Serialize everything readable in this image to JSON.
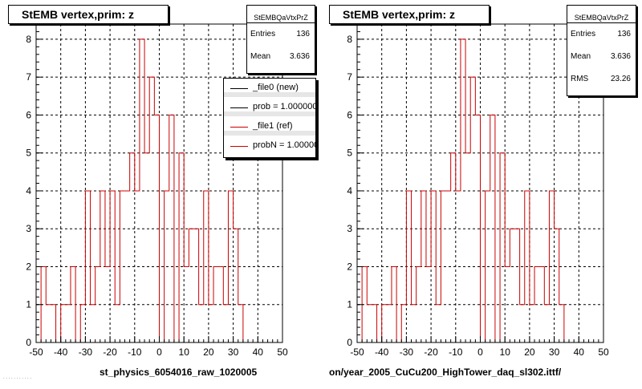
{
  "chart_data": [
    {
      "type": "histogram",
      "title": "StEMB  vertex,prim: z",
      "xlabel": "st_physics_6054016_raw_1020005",
      "ylabel": "",
      "xlim": [
        -50,
        50
      ],
      "ylim": [
        0,
        8.4
      ],
      "x_ticks": [
        -50,
        -40,
        -30,
        -20,
        -10,
        0,
        10,
        20,
        30,
        40,
        50
      ],
      "y_ticks": [
        0,
        1,
        2,
        3,
        4,
        5,
        6,
        7,
        8
      ],
      "grid": true,
      "bin_width": 2,
      "bin_edges_start": -50,
      "series": [
        {
          "name": "_file1 (ref)",
          "color": "#cc0000",
          "values": [
            0,
            2,
            1,
            1,
            0,
            1,
            1,
            2,
            0,
            1,
            4,
            1,
            2,
            4,
            2,
            4,
            1,
            4,
            4,
            5,
            4,
            8,
            5,
            7,
            6,
            0,
            4,
            6,
            0,
            5,
            2,
            3,
            3,
            1,
            4,
            1,
            2,
            2,
            1,
            4,
            3,
            1
          ]
        }
      ],
      "stats": {
        "title": "StEMBQaVtxPrZ",
        "rows": [
          {
            "label": "Entries",
            "value": "136"
          },
          {
            "label": "Mean",
            "value": "3.636"
          }
        ]
      },
      "legend": {
        "position": "top-right",
        "entries": [
          {
            "label": "_file0 (new)",
            "color": "#000000"
          },
          {
            "label": "prob = 1.000000",
            "color": "#000000"
          },
          {
            "label": "_file1 (ref)",
            "color": "#cc0000"
          },
          {
            "label": "probN = 1.000000",
            "color": "#cc0000"
          }
        ]
      }
    },
    {
      "type": "histogram",
      "title": "StEMB  vertex,prim: z",
      "xlabel": "on/year_2005_CuCu200_HighTower_daq_sl302.ittf/",
      "ylabel": "",
      "xlim": [
        -50,
        50
      ],
      "ylim": [
        0,
        8.4
      ],
      "x_ticks": [
        -50,
        -40,
        -30,
        -20,
        -10,
        0,
        10,
        20,
        30,
        40,
        50
      ],
      "y_ticks": [
        0,
        1,
        2,
        3,
        4,
        5,
        6,
        7,
        8
      ],
      "grid": true,
      "bin_width": 2,
      "bin_edges_start": -50,
      "series": [
        {
          "name": "",
          "color": "#cc0000",
          "values": [
            0,
            2,
            1,
            1,
            0,
            1,
            1,
            2,
            0,
            1,
            4,
            1,
            2,
            4,
            2,
            4,
            1,
            4,
            4,
            5,
            4,
            8,
            5,
            7,
            6,
            0,
            4,
            6,
            0,
            5,
            2,
            3,
            3,
            1,
            4,
            1,
            2,
            2,
            1,
            4,
            3,
            1
          ]
        }
      ],
      "stats": {
        "title": "StEMBQaVtxPrZ",
        "rows": [
          {
            "label": "Entries",
            "value": "136"
          },
          {
            "label": "Mean",
            "value": "3.636"
          },
          {
            "label": "RMS",
            "value": "23.26"
          }
        ]
      }
    }
  ]
}
